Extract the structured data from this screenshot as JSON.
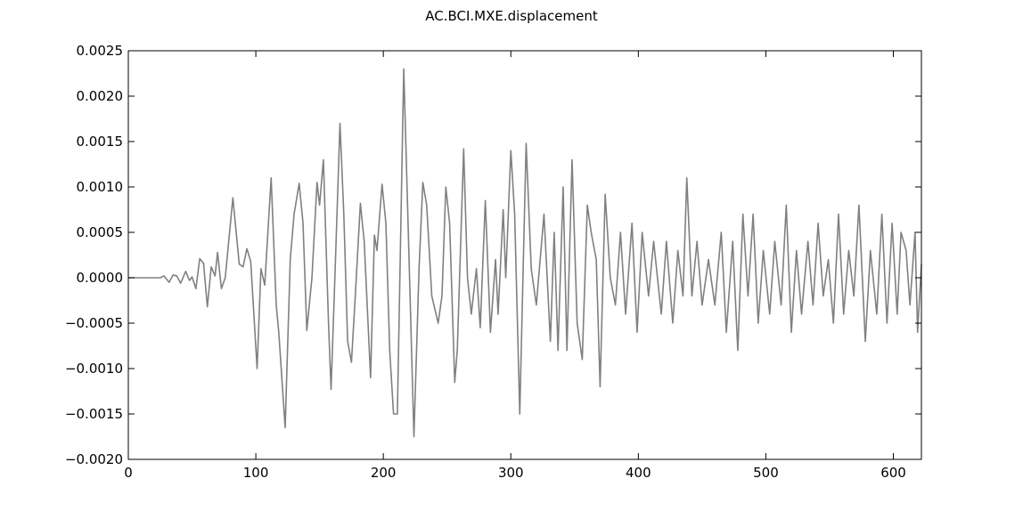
{
  "chart_data": {
    "type": "line",
    "title": "AC.BCI.MXE.displacement",
    "xlabel": "",
    "ylabel": "",
    "xlim": [
      0,
      622
    ],
    "ylim": [
      -0.002,
      0.0025
    ],
    "xticks": [
      0,
      100,
      200,
      300,
      400,
      500,
      600
    ],
    "xtick_labels": [
      "0",
      "100",
      "200",
      "300",
      "400",
      "500",
      "600"
    ],
    "yticks": [
      -0.002,
      -0.0015,
      -0.001,
      -0.0005,
      0.0,
      0.0005,
      0.001,
      0.0015,
      0.002,
      0.0025
    ],
    "ytick_labels": [
      "−0.0020",
      "−0.0015",
      "−0.0010",
      "−0.0005",
      "0.0000",
      "0.0005",
      "0.0010",
      "0.0015",
      "0.0020",
      "0.0025"
    ],
    "grid": false,
    "legend": "none",
    "series": [
      {
        "color": "#808080",
        "points": [
          [
            0,
            0
          ],
          [
            20,
            0
          ],
          [
            25,
            0
          ],
          [
            28,
            2e-05
          ],
          [
            32,
            -5e-05
          ],
          [
            35,
            3e-05
          ],
          [
            38,
            2e-05
          ],
          [
            41,
            -6e-05
          ],
          [
            45,
            7e-05
          ],
          [
            48,
            -3e-05
          ],
          [
            50,
            1e-05
          ],
          [
            53,
            -0.00012
          ],
          [
            56,
            0.00021
          ],
          [
            59,
            0.00016
          ],
          [
            62,
            -0.00032
          ],
          [
            65,
            0.00012
          ],
          [
            68,
            2e-05
          ],
          [
            70,
            0.00028
          ],
          [
            73,
            -0.00012
          ],
          [
            76,
            0.0
          ],
          [
            82,
            0.00088
          ],
          [
            87,
            0.00015
          ],
          [
            90,
            0.00012
          ],
          [
            93,
            0.00032
          ],
          [
            96,
            0.00018
          ],
          [
            101,
            -0.001
          ],
          [
            104,
            0.0001
          ],
          [
            107,
            -8e-05
          ],
          [
            112,
            0.0011
          ],
          [
            116,
            -0.0003
          ],
          [
            118,
            -0.0006
          ],
          [
            123,
            -0.00165
          ],
          [
            127,
            0.0002
          ],
          [
            130,
            0.0007
          ],
          [
            134,
            0.00104
          ],
          [
            137,
            0.0006
          ],
          [
            140,
            -0.00058
          ],
          [
            144,
            0.0
          ],
          [
            148,
            0.00105
          ],
          [
            150,
            0.0008
          ],
          [
            153,
            0.0013
          ],
          [
            157,
            -0.0005
          ],
          [
            159,
            -0.00123
          ],
          [
            162,
            0.0
          ],
          [
            166,
            0.0017
          ],
          [
            169,
            0.0007
          ],
          [
            172,
            -0.0007
          ],
          [
            175,
            -0.00093
          ],
          [
            178,
            -0.0002
          ],
          [
            182,
            0.00082
          ],
          [
            185,
            0.0004
          ],
          [
            190,
            -0.0011
          ],
          [
            193,
            0.00047
          ],
          [
            195,
            0.0003
          ],
          [
            199,
            0.00103
          ],
          [
            202,
            0.0006
          ],
          [
            205,
            -0.0008
          ],
          [
            208,
            -0.0015
          ],
          [
            211,
            -0.0015
          ],
          [
            216,
            0.0023
          ],
          [
            219,
            0.0008
          ],
          [
            224,
            -0.00175
          ],
          [
            228,
            0.0001
          ],
          [
            231,
            0.00105
          ],
          [
            234,
            0.0008
          ],
          [
            238,
            -0.0002
          ],
          [
            243,
            -0.0005
          ],
          [
            246,
            -0.0002
          ],
          [
            249,
            0.001
          ],
          [
            252,
            0.0006
          ],
          [
            256,
            -0.00115
          ],
          [
            258,
            -0.0008
          ],
          [
            263,
            0.00142
          ],
          [
            266,
            0.0
          ],
          [
            269,
            -0.0004
          ],
          [
            273,
            0.0001
          ],
          [
            276,
            -0.00055
          ],
          [
            280,
            0.00085
          ],
          [
            284,
            -0.0006
          ],
          [
            288,
            0.0002
          ],
          [
            290,
            -0.0004
          ],
          [
            294,
            0.00075
          ],
          [
            296,
            0.0
          ],
          [
            300,
            0.0014
          ],
          [
            303,
            0.0007
          ],
          [
            307,
            -0.0015
          ],
          [
            310,
            0.0003
          ],
          [
            312,
            0.00148
          ],
          [
            316,
            0.0001
          ],
          [
            320,
            -0.0003
          ],
          [
            326,
            0.0007
          ],
          [
            331,
            -0.0007
          ],
          [
            334,
            0.0005
          ],
          [
            337,
            -0.0008
          ],
          [
            341,
            0.001
          ],
          [
            344,
            -0.0008
          ],
          [
            348,
            0.0013
          ],
          [
            352,
            -0.0005
          ],
          [
            356,
            -0.0009
          ],
          [
            360,
            0.0008
          ],
          [
            363,
            0.0005
          ],
          [
            367,
            0.0002
          ],
          [
            370,
            -0.0012
          ],
          [
            374,
            0.00092
          ],
          [
            378,
            0.0
          ],
          [
            382,
            -0.0003
          ],
          [
            386,
            0.0005
          ],
          [
            390,
            -0.0004
          ],
          [
            395,
            0.0006
          ],
          [
            399,
            -0.0006
          ],
          [
            403,
            0.0005
          ],
          [
            408,
            -0.0002
          ],
          [
            412,
            0.0004
          ],
          [
            418,
            -0.0004
          ],
          [
            422,
            0.0004
          ],
          [
            427,
            -0.0005
          ],
          [
            431,
            0.0003
          ],
          [
            435,
            -0.0002
          ],
          [
            438,
            0.0011
          ],
          [
            442,
            -0.0002
          ],
          [
            446,
            0.0004
          ],
          [
            450,
            -0.0003
          ],
          [
            455,
            0.0002
          ],
          [
            460,
            -0.0003
          ],
          [
            465,
            0.0005
          ],
          [
            469,
            -0.0006
          ],
          [
            474,
            0.0004
          ],
          [
            478,
            -0.0008
          ],
          [
            482,
            0.0007
          ],
          [
            486,
            -0.0002
          ],
          [
            490,
            0.0007
          ],
          [
            494,
            -0.0005
          ],
          [
            498,
            0.0003
          ],
          [
            503,
            -0.0004
          ],
          [
            507,
            0.0004
          ],
          [
            512,
            -0.0003
          ],
          [
            516,
            0.0008
          ],
          [
            520,
            -0.0006
          ],
          [
            524,
            0.0003
          ],
          [
            528,
            -0.0004
          ],
          [
            533,
            0.0004
          ],
          [
            537,
            -0.0003
          ],
          [
            541,
            0.0006
          ],
          [
            545,
            -0.0002
          ],
          [
            549,
            0.0002
          ],
          [
            553,
            -0.0005
          ],
          [
            557,
            0.0007
          ],
          [
            561,
            -0.0004
          ],
          [
            565,
            0.0003
          ],
          [
            569,
            -0.0002
          ],
          [
            573,
            0.0008
          ],
          [
            578,
            -0.0007
          ],
          [
            582,
            0.0003
          ],
          [
            587,
            -0.0004
          ],
          [
            591,
            0.0007
          ],
          [
            595,
            -0.0005
          ],
          [
            599,
            0.0006
          ],
          [
            603,
            -0.0004
          ],
          [
            606,
            0.0005
          ],
          [
            610,
            0.0003
          ],
          [
            613,
            -0.0003
          ],
          [
            617,
            0.0005
          ],
          [
            619,
            -0.0006
          ],
          [
            622,
            0.00015
          ]
        ]
      }
    ]
  }
}
